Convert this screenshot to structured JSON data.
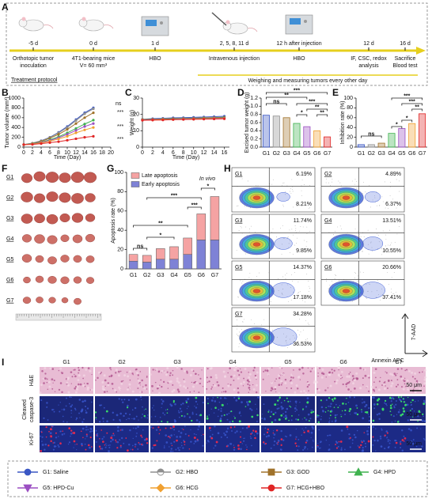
{
  "panel_labels": [
    "A",
    "B",
    "C",
    "D",
    "E",
    "F",
    "G",
    "H",
    "I"
  ],
  "timeline": {
    "events": [
      {
        "time": "-5 d",
        "lines": [
          {
            "text": "Orthotopic tumor",
            "color": "#111111"
          },
          {
            "text": "inoculation",
            "color": "#111111"
          }
        ]
      },
      {
        "time": "0 d",
        "lines": [
          {
            "text": "4T1-bearing mice",
            "color": "#111111"
          },
          {
            "text": "V= 60 mm³",
            "color": "#111111"
          }
        ]
      },
      {
        "time": "1 d",
        "lines": [
          {
            "text": "HBO",
            "color": "#1f9a3a"
          }
        ]
      },
      {
        "time": "2, 5, 8, 11 d",
        "lines": [
          {
            "text": "Intravenous injection",
            "color": "#c8203c"
          }
        ]
      },
      {
        "time": "12 h after injection",
        "lines": [
          {
            "text": "HBO",
            "color": "#1f9a3a"
          }
        ]
      },
      {
        "time": "12 d",
        "lines": [
          {
            "text": "IF, CSC, redox",
            "color": "#2b55b8"
          },
          {
            "text": "analysis",
            "color": "#2b55b8"
          }
        ]
      },
      {
        "time": "16 d",
        "lines": [
          {
            "text": "Sacrifice",
            "color": "#111111"
          },
          {
            "text": "Blood test",
            "color": "#f08a00"
          }
        ]
      }
    ],
    "protocol": "Treatment protocol",
    "note": "Weighing and measuring tumors every other day"
  },
  "chart_data": [
    {
      "type": "line",
      "y_label": "Tumor volume (mm³)",
      "x_label": "Time (Day)",
      "x": [
        0,
        2,
        4,
        6,
        8,
        10,
        12,
        14,
        16
      ],
      "xlim": [
        0,
        20
      ],
      "xticks": [
        0,
        2,
        4,
        6,
        8,
        10,
        12,
        14,
        16,
        18,
        20
      ],
      "ylim": [
        0,
        1000
      ],
      "yticks": [
        0,
        200,
        400,
        600,
        800,
        1000
      ],
      "series": [
        {
          "color": "#3a57c4",
          "values": [
            50,
            80,
            130,
            200,
            300,
            420,
            560,
            700,
            800
          ]
        },
        {
          "color": "#8f8f8f",
          "values": [
            50,
            80,
            125,
            195,
            290,
            400,
            540,
            680,
            780
          ]
        },
        {
          "color": "#a0722a",
          "values": [
            50,
            75,
            115,
            180,
            260,
            360,
            480,
            600,
            700
          ]
        },
        {
          "color": "#3fb24f",
          "values": [
            50,
            70,
            100,
            150,
            210,
            290,
            380,
            470,
            550
          ]
        },
        {
          "color": "#9b4fc2",
          "values": [
            50,
            65,
            95,
            135,
            190,
            260,
            340,
            420,
            480
          ]
        },
        {
          "color": "#f0a030",
          "values": [
            50,
            60,
            85,
            120,
            165,
            220,
            290,
            350,
            400
          ]
        },
        {
          "color": "#e02525",
          "values": [
            50,
            55,
            70,
            90,
            110,
            140,
            170,
            200,
            220
          ]
        }
      ],
      "annotations": [
        "ns",
        "***",
        "***",
        "***"
      ]
    },
    {
      "type": "line",
      "y_label": "Weight (g)",
      "x_label": "Time (Day)",
      "x": [
        0,
        2,
        4,
        6,
        8,
        10,
        12,
        14,
        16
      ],
      "xlim": [
        0,
        17
      ],
      "xticks": [
        0,
        2,
        4,
        6,
        8,
        10,
        12,
        14,
        16
      ],
      "ylim": [
        0,
        30
      ],
      "yticks": [
        0,
        10,
        20,
        30
      ],
      "series": [
        {
          "color": "#3a57c4",
          "values": [
            17.0,
            17.4,
            17.6,
            17.9,
            18.0,
            18.2,
            18.4,
            18.6,
            18.9
          ]
        },
        {
          "color": "#8f8f8f",
          "values": [
            16.8,
            17.0,
            17.3,
            17.5,
            17.6,
            17.8,
            18.0,
            18.1,
            18.3
          ]
        },
        {
          "color": "#a0722a",
          "values": [
            16.9,
            17.1,
            17.2,
            17.4,
            17.5,
            17.6,
            17.8,
            18.0,
            18.2
          ]
        },
        {
          "color": "#3fb24f",
          "values": [
            16.7,
            16.9,
            17.0,
            17.2,
            17.3,
            17.4,
            17.6,
            17.7,
            17.9
          ]
        },
        {
          "color": "#9b4fc2",
          "values": [
            16.6,
            16.8,
            16.9,
            17.0,
            17.2,
            17.3,
            17.4,
            17.6,
            17.7
          ]
        },
        {
          "color": "#f0a030",
          "values": [
            16.5,
            16.6,
            16.8,
            16.9,
            17.0,
            17.1,
            17.3,
            17.4,
            17.5
          ]
        },
        {
          "color": "#e02525",
          "values": [
            16.4,
            16.5,
            16.6,
            16.8,
            16.9,
            17.0,
            17.1,
            17.2,
            17.3
          ]
        }
      ]
    },
    {
      "type": "bar",
      "y_label": "Excised tumor weight (g)",
      "categories": [
        "G1",
        "G2",
        "G3",
        "G4",
        "G5",
        "G6",
        "G7"
      ],
      "values": [
        0.78,
        0.76,
        0.72,
        0.58,
        0.5,
        0.4,
        0.25
      ],
      "colors": [
        "#3a57c4",
        "#8f8f8f",
        "#a0722a",
        "#3fb24f",
        "#9b4fc2",
        "#f0a030",
        "#e02525"
      ],
      "ylim": [
        0,
        1.2
      ],
      "yticks": [
        {
          "value": 0,
          "label": "0.0"
        },
        0.2,
        0.4,
        0.6,
        0.8,
        {
          "value": 1,
          "label": "1.0"
        },
        1.2
      ],
      "annotations": [
        "***",
        "**",
        "ns",
        "***",
        "**",
        "**",
        "*"
      ]
    },
    {
      "type": "bar",
      "y_label": "Inhibition rate (%)",
      "categories": [
        "G1",
        "G2",
        "G3",
        "G4",
        "G5",
        "G6",
        "G7"
      ],
      "values": [
        5,
        5,
        8,
        28,
        38,
        48,
        68
      ],
      "colors": [
        "#3a57c4",
        "#8f8f8f",
        "#a0722a",
        "#3fb24f",
        "#9b4fc2",
        "#f0a030",
        "#e02525"
      ],
      "ylim": [
        0,
        100
      ],
      "yticks": [
        0,
        20,
        40,
        60,
        80,
        100
      ],
      "annotations": [
        "ns",
        "*",
        "*",
        "**",
        "***",
        "***"
      ]
    },
    {
      "type": "stacked_bar",
      "y_label": "Apoptosis rate (%)",
      "note": "In vivo",
      "categories": [
        "G1",
        "G2",
        "G3",
        "G4",
        "G5",
        "G6",
        "G7"
      ],
      "series": [
        {
          "name": "Early apoptosis",
          "color": "#7e82d6",
          "values": [
            8,
            7,
            10,
            10,
            15,
            30,
            30
          ]
        },
        {
          "name": "Late apoptosis",
          "color": "#f5a3a3",
          "values": [
            7,
            7,
            11,
            13,
            17,
            27,
            45
          ]
        }
      ],
      "ylim": [
        0,
        100
      ],
      "yticks": [
        0,
        20,
        40,
        60,
        80,
        100
      ],
      "annotations": [
        "ns",
        "*",
        "**",
        "***",
        "***",
        "*"
      ]
    }
  ],
  "photos": {
    "rows": [
      "G1",
      "G2",
      "G3",
      "G4",
      "G5",
      "G6",
      "G7"
    ]
  },
  "flow": {
    "panels": [
      {
        "group": "G1",
        "late": "6.19%",
        "early": "8.21%"
      },
      {
        "group": "G2",
        "late": "4.89%",
        "early": "6.37%"
      },
      {
        "group": "G3",
        "late": "11.74%",
        "early": "9.85%"
      },
      {
        "group": "G4",
        "late": "13.51%",
        "early": "10.55%"
      },
      {
        "group": "G5",
        "late": "14.37%",
        "early": "17.18%"
      },
      {
        "group": "G6",
        "late": "20.66%",
        "early": "37.41%"
      },
      {
        "group": "G7",
        "late": "34.28%",
        "early": "36.53%"
      }
    ],
    "y_label": "7-AAD",
    "x_label": "Annexin APC"
  },
  "histology": {
    "columns": [
      "G1",
      "G2",
      "G3",
      "G4",
      "G5",
      "G6",
      "G7"
    ],
    "rows": [
      [
        "H&E"
      ],
      [
        "Cleaved",
        "caspase-3"
      ],
      [
        "Ki-67"
      ]
    ],
    "scale_bars": [
      "50 μm",
      "50 μm",
      "50 μm"
    ]
  },
  "legend": [
    {
      "name": "G1: Saline",
      "color": "#3a57c4",
      "marker": "circle"
    },
    {
      "name": "G2: HBO",
      "color": "#8f8f8f",
      "marker": "half-circle"
    },
    {
      "name": "G3: GOD",
      "color": "#a0722a",
      "marker": "square"
    },
    {
      "name": "G4: HPD",
      "color": "#3fb24f",
      "marker": "triangle"
    },
    {
      "name": "G5: HPD-Cu",
      "color": "#9b4fc2",
      "marker": "triangle-down"
    },
    {
      "name": "G6: HCG",
      "color": "#f0a030",
      "marker": "diamond"
    },
    {
      "name": "G7: HCG+HBO",
      "color": "#e02525",
      "marker": "circle"
    }
  ]
}
